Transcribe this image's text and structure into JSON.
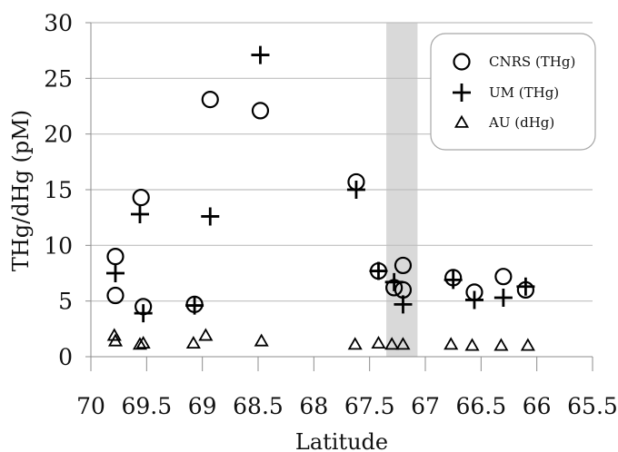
{
  "chart_data": {
    "type": "scatter",
    "xlabel": "Latitude",
    "ylabel": "THg/dHg (pM)",
    "xlim": [
      70,
      65.5
    ],
    "ylim": [
      0,
      30
    ],
    "x_reversed": true,
    "x_ticks": [
      "70",
      "69.5",
      "69",
      "68.5",
      "68",
      "67.5",
      "67",
      "66.5",
      "66",
      "65.5"
    ],
    "y_ticks": [
      "0",
      "5",
      "10",
      "15",
      "20",
      "25",
      "30"
    ],
    "grid": "horizontal",
    "legend_position": "top-right",
    "shaded_band": [
      67.35,
      67.07
    ],
    "colors": {
      "marker": "#000000",
      "grid": "#bfbfbf",
      "band": "#d9d9d9",
      "legend_border": "#a6a6a6"
    },
    "series": [
      {
        "name": "CNRS (THg)",
        "marker": "circle",
        "points": [
          [
            69.78,
            9.0
          ],
          [
            69.78,
            5.5
          ],
          [
            69.55,
            14.3
          ],
          [
            69.53,
            4.5
          ],
          [
            69.07,
            4.7
          ],
          [
            68.93,
            23.1
          ],
          [
            68.48,
            22.1
          ],
          [
            67.62,
            15.7
          ],
          [
            67.42,
            7.7
          ],
          [
            67.28,
            6.2
          ],
          [
            67.2,
            6.0
          ],
          [
            67.2,
            8.2
          ],
          [
            66.75,
            7.1
          ],
          [
            66.56,
            5.8
          ],
          [
            66.3,
            7.2
          ],
          [
            66.1,
            6.0
          ]
        ]
      },
      {
        "name": "UM (THg)",
        "marker": "plus",
        "points": [
          [
            69.78,
            7.5
          ],
          [
            69.56,
            12.8
          ],
          [
            69.53,
            3.9
          ],
          [
            69.07,
            4.6
          ],
          [
            68.93,
            12.6
          ],
          [
            68.48,
            27.1
          ],
          [
            67.62,
            15.0
          ],
          [
            67.42,
            7.7
          ],
          [
            67.28,
            6.7
          ],
          [
            67.2,
            4.7
          ],
          [
            66.75,
            6.9
          ],
          [
            66.56,
            5.1
          ],
          [
            66.3,
            5.3
          ],
          [
            66.1,
            6.3
          ]
        ]
      },
      {
        "name": "AU (dHg)",
        "marker": "triangle",
        "points": [
          [
            69.79,
            1.9
          ],
          [
            69.78,
            1.4
          ],
          [
            69.56,
            1.1
          ],
          [
            69.53,
            1.2
          ],
          [
            69.08,
            1.2
          ],
          [
            68.97,
            1.9
          ],
          [
            68.47,
            1.4
          ],
          [
            67.63,
            1.1
          ],
          [
            67.42,
            1.2
          ],
          [
            67.3,
            1.1
          ],
          [
            67.2,
            1.1
          ],
          [
            66.77,
            1.1
          ],
          [
            66.58,
            1.0
          ],
          [
            66.32,
            1.0
          ],
          [
            66.08,
            1.0
          ]
        ]
      }
    ]
  }
}
